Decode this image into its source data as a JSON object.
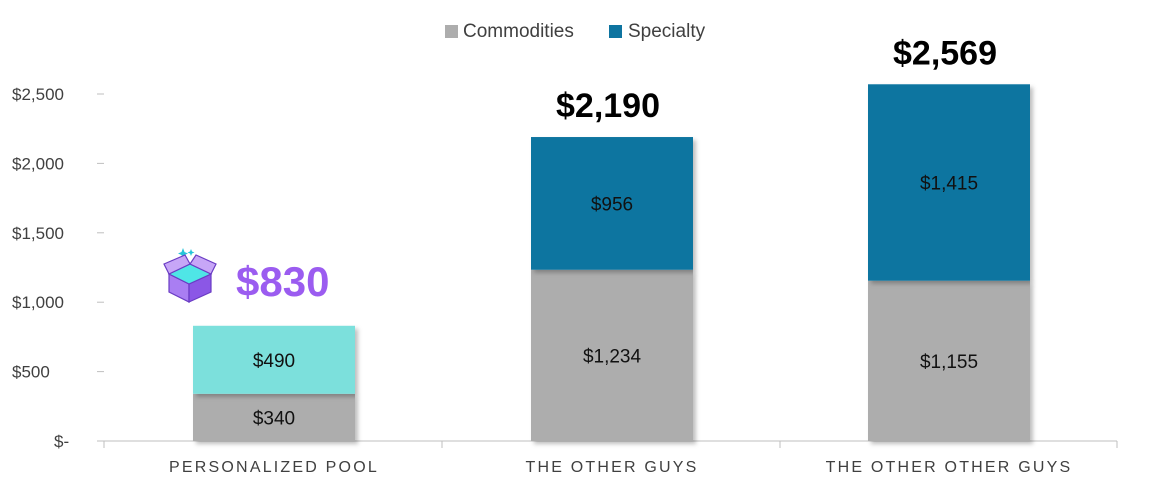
{
  "chart_data": {
    "type": "bar",
    "stacked": true,
    "categories": [
      "PERSONALIZED POOL",
      "THE OTHER GUYS",
      "THE OTHER OTHER GUYS"
    ],
    "legend": [
      {
        "name": "Commodities",
        "color": "#adadad"
      },
      {
        "name": "Specialty",
        "color": "#0e74a0"
      }
    ],
    "legend_position": "top-center",
    "ylim": [
      0,
      2500
    ],
    "yticks": [
      {
        "value": 0,
        "label": "$-"
      },
      {
        "value": 500,
        "label": "$500"
      },
      {
        "value": 1000,
        "label": "$1,000"
      },
      {
        "value": 1500,
        "label": "$1,500"
      },
      {
        "value": 2000,
        "label": "$2,000"
      },
      {
        "value": 2500,
        "label": "$2,500"
      }
    ],
    "grid": false,
    "bars": [
      {
        "category": "PERSONALIZED POOL",
        "segments": [
          {
            "series": "Commodities",
            "value": 340,
            "label": "$340",
            "color": "#adadad"
          },
          {
            "series": "Specialty",
            "value": 490,
            "label": "$490",
            "color": "#7ce0dc"
          }
        ],
        "total": 830,
        "total_label": "$830",
        "total_color": "#9b5cf0",
        "total_icon": "gift-box-icon"
      },
      {
        "category": "THE OTHER GUYS",
        "segments": [
          {
            "series": "Commodities",
            "value": 1234,
            "label": "$1,234",
            "color": "#adadad"
          },
          {
            "series": "Specialty",
            "value": 956,
            "label": "$956",
            "color": "#0e74a0"
          }
        ],
        "total": 2190,
        "total_label": "$2,190",
        "total_color": "#000000"
      },
      {
        "category": "THE OTHER OTHER GUYS",
        "segments": [
          {
            "series": "Commodities",
            "value": 1155,
            "label": "$1,155",
            "color": "#adadad"
          },
          {
            "series": "Specialty",
            "value": 1415,
            "label": "$1,415",
            "color": "#0e74a0"
          }
        ],
        "total": 2569,
        "total_label": "$2,569",
        "total_color": "#000000"
      }
    ]
  }
}
